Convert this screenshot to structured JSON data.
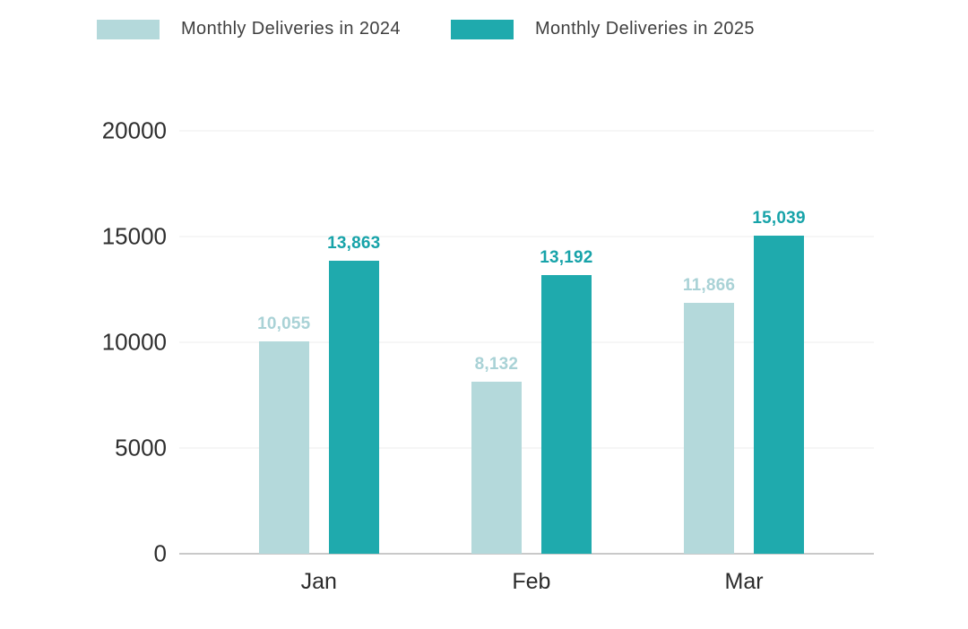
{
  "chart_data": {
    "type": "bar",
    "title": "",
    "xlabel": "",
    "ylabel": "",
    "categories": [
      "Jan",
      "Feb",
      "Mar"
    ],
    "series": [
      {
        "name": "Monthly Deliveries in 2024",
        "values": [
          10055,
          8132,
          11866
        ],
        "value_labels": [
          "10,055",
          "8,132",
          "11,866"
        ],
        "color": "#b4d9db",
        "label_color": "#a9d2d6"
      },
      {
        "name": "Monthly Deliveries in 2025",
        "values": [
          13863,
          13192,
          15039
        ],
        "value_labels": [
          "13,863",
          "13,192",
          "15,039"
        ],
        "color": "#1faaad",
        "label_color": "#17a3a9"
      }
    ],
    "ylim": [
      0,
      20000
    ],
    "yticks": [
      0,
      5000,
      10000,
      15000,
      20000
    ],
    "ytick_labels": [
      "0",
      "5000",
      "10000",
      "15000",
      "20000"
    ],
    "grid": "horizontal",
    "legend_position": "top"
  },
  "colors": {
    "background": "#ffffff",
    "gridline": "#ececec",
    "axis_line": "#c9c9c9",
    "axis_text": "#2e2e2e",
    "legend_text": "#3f3f3f"
  }
}
